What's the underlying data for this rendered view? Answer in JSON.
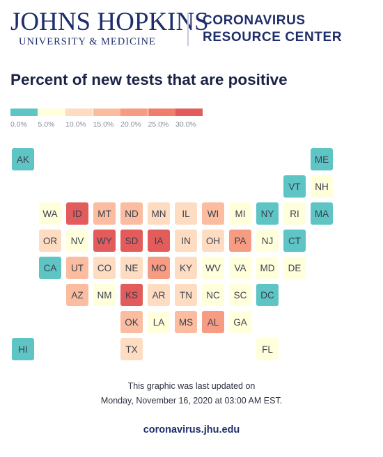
{
  "header": {
    "logo_main": "JOHNS HOPKINS",
    "logo_sub": "UNIVERSITY & MEDICINE",
    "center_line1": "CORONAVIRUS",
    "center_line2": "RESOURCE CENTER"
  },
  "title": "Percent of new tests that are positive",
  "legend": {
    "colors": [
      "#5ec4c4",
      "#ffffdc",
      "#fddcc2",
      "#fbbca0",
      "#f69c82",
      "#ef7f6b",
      "#e25c5c"
    ],
    "labels": [
      "0.0%",
      "5.0%",
      "10.0%",
      "15.0%",
      "20.0%",
      "25.0%",
      "30.0%"
    ]
  },
  "states": [
    {
      "abbr": "AK",
      "row": 0,
      "col": 0,
      "bin": 0
    },
    {
      "abbr": "ME",
      "row": 0,
      "col": 11,
      "bin": 0
    },
    {
      "abbr": "VT",
      "row": 1,
      "col": 10,
      "bin": 0
    },
    {
      "abbr": "NH",
      "row": 1,
      "col": 11,
      "bin": 1
    },
    {
      "abbr": "WA",
      "row": 2,
      "col": 1,
      "bin": 1
    },
    {
      "abbr": "ID",
      "row": 2,
      "col": 2,
      "bin": 6
    },
    {
      "abbr": "MT",
      "row": 2,
      "col": 3,
      "bin": 3
    },
    {
      "abbr": "ND",
      "row": 2,
      "col": 4,
      "bin": 3
    },
    {
      "abbr": "MN",
      "row": 2,
      "col": 5,
      "bin": 2
    },
    {
      "abbr": "IL",
      "row": 2,
      "col": 6,
      "bin": 2
    },
    {
      "abbr": "WI",
      "row": 2,
      "col": 7,
      "bin": 3
    },
    {
      "abbr": "MI",
      "row": 2,
      "col": 8,
      "bin": 1
    },
    {
      "abbr": "NY",
      "row": 2,
      "col": 9,
      "bin": 0
    },
    {
      "abbr": "RI",
      "row": 2,
      "col": 10,
      "bin": 1
    },
    {
      "abbr": "MA",
      "row": 2,
      "col": 11,
      "bin": 0
    },
    {
      "abbr": "OR",
      "row": 3,
      "col": 1,
      "bin": 2
    },
    {
      "abbr": "NV",
      "row": 3,
      "col": 2,
      "bin": 1
    },
    {
      "abbr": "WY",
      "row": 3,
      "col": 3,
      "bin": 6
    },
    {
      "abbr": "SD",
      "row": 3,
      "col": 4,
      "bin": 6
    },
    {
      "abbr": "IA",
      "row": 3,
      "col": 5,
      "bin": 6
    },
    {
      "abbr": "IN",
      "row": 3,
      "col": 6,
      "bin": 2
    },
    {
      "abbr": "OH",
      "row": 3,
      "col": 7,
      "bin": 2
    },
    {
      "abbr": "PA",
      "row": 3,
      "col": 8,
      "bin": 4
    },
    {
      "abbr": "NJ",
      "row": 3,
      "col": 9,
      "bin": 1
    },
    {
      "abbr": "CT",
      "row": 3,
      "col": 10,
      "bin": 0
    },
    {
      "abbr": "CA",
      "row": 4,
      "col": 1,
      "bin": 0
    },
    {
      "abbr": "UT",
      "row": 4,
      "col": 2,
      "bin": 3
    },
    {
      "abbr": "CO",
      "row": 4,
      "col": 3,
      "bin": 2
    },
    {
      "abbr": "NE",
      "row": 4,
      "col": 4,
      "bin": 2
    },
    {
      "abbr": "MO",
      "row": 4,
      "col": 5,
      "bin": 4
    },
    {
      "abbr": "KY",
      "row": 4,
      "col": 6,
      "bin": 2
    },
    {
      "abbr": "WV",
      "row": 4,
      "col": 7,
      "bin": 1
    },
    {
      "abbr": "VA",
      "row": 4,
      "col": 8,
      "bin": 1
    },
    {
      "abbr": "MD",
      "row": 4,
      "col": 9,
      "bin": 1
    },
    {
      "abbr": "DE",
      "row": 4,
      "col": 10,
      "bin": 1
    },
    {
      "abbr": "AZ",
      "row": 5,
      "col": 2,
      "bin": 3
    },
    {
      "abbr": "NM",
      "row": 5,
      "col": 3,
      "bin": 1
    },
    {
      "abbr": "KS",
      "row": 5,
      "col": 4,
      "bin": 6
    },
    {
      "abbr": "AR",
      "row": 5,
      "col": 5,
      "bin": 2
    },
    {
      "abbr": "TN",
      "row": 5,
      "col": 6,
      "bin": 2
    },
    {
      "abbr": "NC",
      "row": 5,
      "col": 7,
      "bin": 1
    },
    {
      "abbr": "SC",
      "row": 5,
      "col": 8,
      "bin": 1
    },
    {
      "abbr": "DC",
      "row": 5,
      "col": 9,
      "bin": 0
    },
    {
      "abbr": "OK",
      "row": 6,
      "col": 4,
      "bin": 3
    },
    {
      "abbr": "LA",
      "row": 6,
      "col": 5,
      "bin": 1
    },
    {
      "abbr": "MS",
      "row": 6,
      "col": 6,
      "bin": 3
    },
    {
      "abbr": "AL",
      "row": 6,
      "col": 7,
      "bin": 4
    },
    {
      "abbr": "GA",
      "row": 6,
      "col": 8,
      "bin": 1
    },
    {
      "abbr": "HI",
      "row": 7,
      "col": 0,
      "bin": 0
    },
    {
      "abbr": "TX",
      "row": 7,
      "col": 4,
      "bin": 2
    },
    {
      "abbr": "FL",
      "row": 7,
      "col": 9,
      "bin": 1
    }
  ],
  "footer": {
    "line1": "This graphic was last updated on",
    "line2": "Monday, November 16, 2020 at 03:00 AM EST.",
    "site": "coronavirus.jhu.edu"
  }
}
